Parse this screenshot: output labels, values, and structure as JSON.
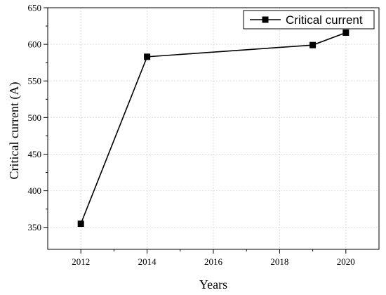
{
  "chart_data": {
    "type": "line",
    "x": [
      2012,
      2014,
      2019,
      2020
    ],
    "series": [
      {
        "name": "Critical current",
        "values": [
          355,
          583,
          599,
          616
        ],
        "marker": "square",
        "color": "#000000"
      }
    ],
    "xlabel": "Years",
    "ylabel": "Critical current (A)",
    "xlim": [
      2011,
      2021
    ],
    "ylim": [
      320,
      650
    ],
    "xticks": [
      2012,
      2014,
      2016,
      2018,
      2020
    ],
    "yticks": [
      350,
      400,
      450,
      500,
      550,
      600,
      650
    ],
    "grid": true,
    "legend_position": "top-right"
  }
}
